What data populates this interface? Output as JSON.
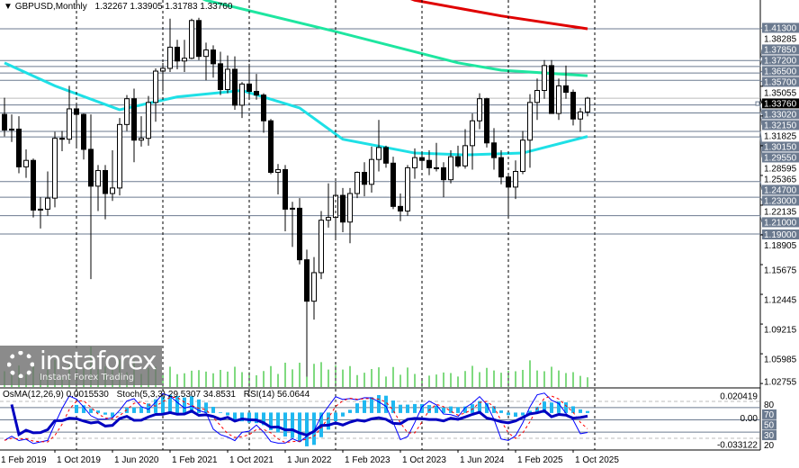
{
  "header": {
    "symbol": "GBPUSD,Monthly",
    "ohlc": "1.32267 1.33905 1.31783 1.33760"
  },
  "indicator_header": {
    "osma": "OsMA(12,26,9) 0.0015530",
    "stoch": "Stoch(5,3,3) 29.5307 34.8531",
    "rsi": "RSI(14) 56.0644"
  },
  "logo": {
    "name": "instaforex",
    "tagline": "Instant Forex Trading"
  },
  "colors": {
    "bull_body": "#ffffff",
    "bear_body": "#000000",
    "ma_red": "#e00000",
    "ma_green": "#1ee6a0",
    "ma_cyan": "#1ee0e6",
    "level_line": "#6b7a8f",
    "volume": "#00b400",
    "osma": "#1fb8f0",
    "stoch_main": "#0000ff",
    "stoch_signal": "#ff0000",
    "rsi": "#0000c0"
  },
  "chart_data": {
    "type": "candlestick",
    "symbol": "GBPUSD",
    "timeframe": "Monthly",
    "start": "2019-03",
    "ohlc": [
      [
        1.32,
        1.338,
        1.296,
        1.303
      ],
      [
        1.303,
        1.32,
        1.29,
        1.304
      ],
      [
        1.304,
        1.318,
        1.256,
        1.263
      ],
      [
        1.263,
        1.282,
        1.251,
        1.27
      ],
      [
        1.27,
        1.272,
        1.208,
        1.216
      ],
      [
        1.216,
        1.23,
        1.196,
        1.217
      ],
      [
        1.217,
        1.258,
        1.21,
        1.229
      ],
      [
        1.229,
        1.301,
        1.219,
        1.294
      ],
      [
        1.294,
        1.302,
        1.28,
        1.293
      ],
      [
        1.293,
        1.351,
        1.288,
        1.326
      ],
      [
        1.326,
        1.331,
        1.285,
        1.32
      ],
      [
        1.32,
        1.321,
        1.271,
        1.282
      ],
      [
        1.282,
        1.32,
        1.141,
        1.242
      ],
      [
        1.242,
        1.265,
        1.215,
        1.259
      ],
      [
        1.259,
        1.265,
        1.206,
        1.234
      ],
      [
        1.234,
        1.281,
        1.226,
        1.24
      ],
      [
        1.24,
        1.316,
        1.232,
        1.309
      ],
      [
        1.309,
        1.341,
        1.302,
        1.337
      ],
      [
        1.337,
        1.348,
        1.268,
        1.292
      ],
      [
        1.292,
        1.318,
        1.285,
        1.294
      ],
      [
        1.294,
        1.34,
        1.286,
        1.333
      ],
      [
        1.333,
        1.37,
        1.312,
        1.367
      ],
      [
        1.367,
        1.376,
        1.345,
        1.37
      ],
      [
        1.37,
        1.424,
        1.366,
        1.393
      ],
      [
        1.393,
        1.401,
        1.369,
        1.378
      ],
      [
        1.378,
        1.401,
        1.366,
        1.381
      ],
      [
        1.381,
        1.424,
        1.38,
        1.422
      ],
      [
        1.422,
        1.425,
        1.379,
        1.383
      ],
      [
        1.383,
        1.398,
        1.357,
        1.39
      ],
      [
        1.39,
        1.395,
        1.36,
        1.375
      ],
      [
        1.375,
        1.388,
        1.341,
        1.347
      ],
      [
        1.347,
        1.384,
        1.343,
        1.369
      ],
      [
        1.369,
        1.383,
        1.325,
        1.33
      ],
      [
        1.33,
        1.355,
        1.316,
        1.353
      ],
      [
        1.353,
        1.375,
        1.336,
        1.345
      ],
      [
        1.345,
        1.364,
        1.336,
        1.341
      ],
      [
        1.341,
        1.343,
        1.3,
        1.313
      ],
      [
        1.313,
        1.315,
        1.255,
        1.257
      ],
      [
        1.257,
        1.266,
        1.233,
        1.26
      ],
      [
        1.26,
        1.265,
        1.193,
        1.217
      ],
      [
        1.217,
        1.225,
        1.176,
        1.218
      ],
      [
        1.218,
        1.229,
        1.157,
        1.162
      ],
      [
        1.162,
        1.173,
        1.035,
        1.117
      ],
      [
        1.117,
        1.165,
        1.097,
        1.148
      ],
      [
        1.148,
        1.215,
        1.141,
        1.205
      ],
      [
        1.205,
        1.245,
        1.197,
        1.208
      ],
      [
        1.208,
        1.247,
        1.184,
        1.232
      ],
      [
        1.232,
        1.24,
        1.192,
        1.203
      ],
      [
        1.203,
        1.24,
        1.18,
        1.234
      ],
      [
        1.234,
        1.258,
        1.229,
        1.257
      ],
      [
        1.257,
        1.268,
        1.231,
        1.244
      ],
      [
        1.244,
        1.285,
        1.235,
        1.271
      ],
      [
        1.271,
        1.314,
        1.258,
        1.284
      ],
      [
        1.284,
        1.286,
        1.262,
        1.267
      ],
      [
        1.267,
        1.274,
        1.217,
        1.22
      ],
      [
        1.22,
        1.234,
        1.204,
        1.215
      ],
      [
        1.215,
        1.265,
        1.21,
        1.262
      ],
      [
        1.262,
        1.283,
        1.25,
        1.273
      ],
      [
        1.273,
        1.278,
        1.26,
        1.27
      ],
      [
        1.27,
        1.281,
        1.254,
        1.262
      ],
      [
        1.262,
        1.289,
        1.258,
        1.262
      ],
      [
        1.262,
        1.268,
        1.23,
        1.249
      ],
      [
        1.249,
        1.281,
        1.245,
        1.274
      ],
      [
        1.274,
        1.286,
        1.262,
        1.264
      ],
      [
        1.264,
        1.304,
        1.261,
        1.286
      ],
      [
        1.286,
        1.321,
        1.26,
        1.313
      ],
      [
        1.313,
        1.343,
        1.304,
        1.337
      ],
      [
        1.337,
        1.338,
        1.284,
        1.289
      ],
      [
        1.289,
        1.305,
        1.26,
        1.273
      ],
      [
        1.273,
        1.281,
        1.244,
        1.252
      ],
      [
        1.252,
        1.254,
        1.21,
        1.241
      ],
      [
        1.241,
        1.27,
        1.228,
        1.258
      ],
      [
        1.258,
        1.302,
        1.255,
        1.292
      ],
      [
        1.292,
        1.342,
        1.262,
        1.333
      ],
      [
        1.333,
        1.359,
        1.314,
        1.346
      ],
      [
        1.346,
        1.379,
        1.337,
        1.373
      ],
      [
        1.373,
        1.379,
        1.321,
        1.321
      ],
      [
        1.321,
        1.359,
        1.314,
        1.351
      ],
      [
        1.351,
        1.373,
        1.337,
        1.344
      ],
      [
        1.344,
        1.347,
        1.308,
        1.315
      ],
      [
        1.315,
        1.327,
        1.301,
        1.32267
      ],
      [
        1.32267,
        1.33905,
        1.31783,
        1.3376
      ]
    ],
    "moving_averages": [
      {
        "color": "#e00000",
        "points": [
          [
            "2023-12",
            1.444
          ],
          [
            "2024-12",
            1.427
          ],
          [
            "2025-12",
            1.413
          ]
        ]
      },
      {
        "color": "#1ee6a0",
        "points": [
          [
            "2021-07",
            1.444
          ],
          [
            "2023-01",
            1.41
          ],
          [
            "2024-06",
            1.376
          ],
          [
            "2024-12",
            1.368
          ],
          [
            "2025-12",
            1.362
          ]
        ]
      },
      {
        "color": "#1ee0e6",
        "points": [
          [
            "2019-03",
            1.376
          ],
          [
            "2019-10",
            1.351
          ],
          [
            "2020-07",
            1.325
          ],
          [
            "2021-03",
            1.339
          ],
          [
            "2021-12",
            1.346
          ],
          [
            "2022-08",
            1.327
          ],
          [
            "2023-02",
            1.293
          ],
          [
            "2023-12",
            1.278
          ],
          [
            "2024-07",
            1.276
          ],
          [
            "2025-03",
            1.278
          ],
          [
            "2025-12",
            1.296
          ]
        ]
      }
    ],
    "levels": [
      "1.41300",
      "1.37850",
      "1.37200",
      "1.36500",
      "1.35700",
      "1.33020",
      "1.32150",
      "1.30150",
      "1.29550",
      "1.24700",
      "1.23000",
      "1.21000",
      "1.19000"
    ],
    "current_price": "1.33760",
    "y_ticks": [
      "1.38285",
      "1.35055",
      "1.31825",
      "1.28595",
      "1.25365",
      "1.22135",
      "1.18905",
      "1.15675",
      "1.12445",
      "1.09215",
      "1.05985",
      "1.02755"
    ],
    "ylim": [
      1.02755,
      1.445
    ],
    "x_ticks": [
      {
        "date": "2019-02",
        "label": "1 Feb 2019"
      },
      {
        "date": "2019-10",
        "label": "1 Oct 2019"
      },
      {
        "date": "2020-06",
        "label": "1 Jun 2020"
      },
      {
        "date": "2021-02",
        "label": "1 Feb 2021"
      },
      {
        "date": "2021-10",
        "label": "1 Oct 2021"
      },
      {
        "date": "2022-06",
        "label": "1 Jun 2022"
      },
      {
        "date": "2023-02",
        "label": "1 Feb 2023"
      },
      {
        "date": "2023-10",
        "label": "1 Oct 2023"
      },
      {
        "date": "2024-06",
        "label": "1 Jun 2024"
      },
      {
        "date": "2025-02",
        "label": "1 Feb 2025"
      },
      {
        "date": "2025-10",
        "label": "1 Oct 2025"
      }
    ],
    "indicator_axis": {
      "osma_max": "0.020419",
      "osma_zero": "0.00",
      "osma_min": "-0.033122",
      "levels": [
        "80",
        "70",
        "50",
        "30",
        "20"
      ]
    }
  }
}
